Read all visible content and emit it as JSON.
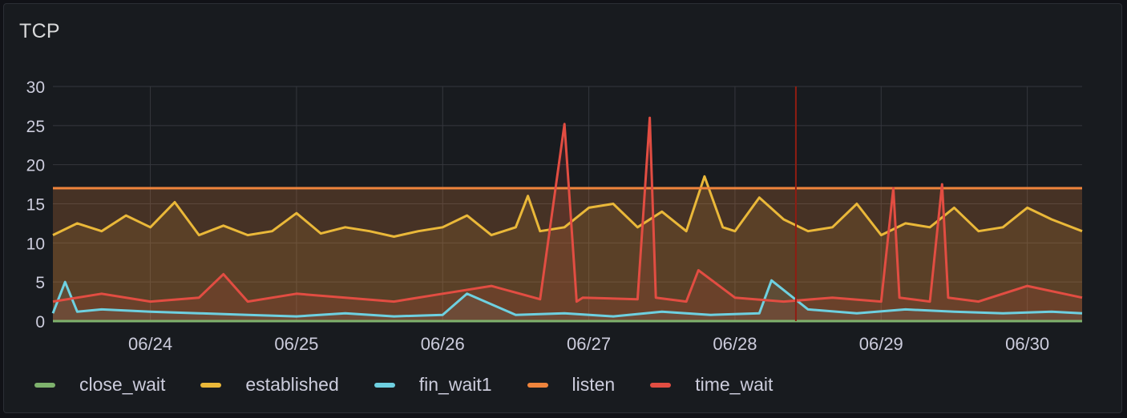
{
  "panel": {
    "title": "TCP"
  },
  "chart_data": {
    "type": "line",
    "title": "TCP",
    "xlabel": "",
    "ylabel": "",
    "x_range": [
      "06/23 08:00",
      "06/30 09:00"
    ],
    "ylim": [
      0,
      30
    ],
    "y_ticks": [
      "0",
      "5",
      "10",
      "15",
      "20",
      "25",
      "30"
    ],
    "x_ticks": [
      "06/24",
      "06/25",
      "06/26",
      "06/27",
      "06/28",
      "06/29",
      "06/30"
    ],
    "grid": true,
    "legend_position": "bottom-left",
    "cursor_marker": "06/28 10:00",
    "series": [
      {
        "name": "close_wait",
        "color": "#7eb26d",
        "x": [
          "06/23 08:00",
          "06/30 09:00"
        ],
        "values": [
          0,
          0
        ]
      },
      {
        "name": "established",
        "color": "#eab839",
        "x": [
          "06/23 08:00",
          "06/23 12:00",
          "06/23 16:00",
          "06/23 20:00",
          "06/24 00:00",
          "06/24 04:00",
          "06/24 08:00",
          "06/24 12:00",
          "06/24 16:00",
          "06/24 20:00",
          "06/25 00:00",
          "06/25 04:00",
          "06/25 08:00",
          "06/25 12:00",
          "06/25 16:00",
          "06/25 20:00",
          "06/26 00:00",
          "06/26 04:00",
          "06/26 08:00",
          "06/26 12:00",
          "06/26 14:00",
          "06/26 16:00",
          "06/26 20:00",
          "06/27 00:00",
          "06/27 04:00",
          "06/27 08:00",
          "06/27 12:00",
          "06/27 16:00",
          "06/27 19:00",
          "06/27 22:00",
          "06/28 00:00",
          "06/28 04:00",
          "06/28 08:00",
          "06/28 12:00",
          "06/28 16:00",
          "06/28 20:00",
          "06/29 00:00",
          "06/29 04:00",
          "06/29 08:00",
          "06/29 12:00",
          "06/29 16:00",
          "06/29 20:00",
          "06/30 00:00",
          "06/30 04:00",
          "06/30 09:00"
        ],
        "values": [
          11.0,
          12.5,
          11.5,
          13.5,
          12.0,
          15.2,
          11.0,
          12.2,
          11.0,
          11.5,
          13.8,
          11.2,
          12.0,
          11.5,
          10.8,
          11.5,
          12.0,
          13.5,
          11.0,
          12.0,
          16.0,
          11.5,
          12.0,
          14.5,
          15.0,
          12.0,
          14.0,
          11.5,
          18.5,
          12.0,
          11.5,
          15.8,
          13.0,
          11.5,
          12.0,
          15.0,
          11.0,
          12.5,
          12.0,
          14.5,
          11.5,
          12.0,
          14.5,
          13.0,
          11.5
        ]
      },
      {
        "name": "fin_wait1",
        "color": "#6ed0e0",
        "x": [
          "06/23 08:00",
          "06/23 10:00",
          "06/23 12:00",
          "06/23 16:00",
          "06/24 00:00",
          "06/24 08:00",
          "06/24 16:00",
          "06/25 00:00",
          "06/25 08:00",
          "06/25 16:00",
          "06/26 00:00",
          "06/26 04:00",
          "06/26 12:00",
          "06/26 20:00",
          "06/27 04:00",
          "06/27 12:00",
          "06/27 20:00",
          "06/28 04:00",
          "06/28 06:00",
          "06/28 12:00",
          "06/28 20:00",
          "06/29 04:00",
          "06/29 12:00",
          "06/29 20:00",
          "06/30 04:00",
          "06/30 09:00"
        ],
        "values": [
          1.0,
          5.0,
          1.2,
          1.5,
          1.2,
          1.0,
          0.8,
          0.6,
          1.0,
          0.6,
          0.8,
          3.5,
          0.8,
          1.0,
          0.6,
          1.2,
          0.8,
          1.0,
          5.2,
          1.5,
          1.0,
          1.5,
          1.2,
          1.0,
          1.2,
          1.0
        ]
      },
      {
        "name": "listen",
        "color": "#ef843c",
        "x": [
          "06/23 08:00",
          "06/30 09:00"
        ],
        "values": [
          17,
          17
        ]
      },
      {
        "name": "time_wait",
        "color": "#e24d42",
        "x": [
          "06/23 08:00",
          "06/23 16:00",
          "06/24 00:00",
          "06/24 08:00",
          "06/24 12:00",
          "06/24 16:00",
          "06/25 00:00",
          "06/25 08:00",
          "06/25 16:00",
          "06/26 00:00",
          "06/26 08:00",
          "06/26 16:00",
          "06/26 20:00",
          "06/26 22:00",
          "06/26 23:00",
          "06/27 08:00",
          "06/27 10:00",
          "06/27 11:00",
          "06/27 16:00",
          "06/27 18:00",
          "06/28 00:00",
          "06/28 08:00",
          "06/28 16:00",
          "06/29 00:00",
          "06/29 02:00",
          "06/29 03:00",
          "06/29 08:00",
          "06/29 10:00",
          "06/29 11:00",
          "06/29 16:00",
          "06/30 00:00",
          "06/30 09:00"
        ],
        "values": [
          2.5,
          3.5,
          2.5,
          3.0,
          6.0,
          2.5,
          3.5,
          3.0,
          2.5,
          3.5,
          4.5,
          2.8,
          25.2,
          2.5,
          3.0,
          2.8,
          26.0,
          3.0,
          2.5,
          6.5,
          3.0,
          2.5,
          3.0,
          2.5,
          17.0,
          3.0,
          2.5,
          17.5,
          3.0,
          2.5,
          4.5,
          3.0
        ]
      }
    ]
  },
  "legend": [
    {
      "label": "close_wait",
      "color": "#7eb26d"
    },
    {
      "label": "established",
      "color": "#eab839"
    },
    {
      "label": "fin_wait1",
      "color": "#6ed0e0"
    },
    {
      "label": "listen",
      "color": "#ef843c"
    },
    {
      "label": "time_wait",
      "color": "#e24d42"
    }
  ]
}
